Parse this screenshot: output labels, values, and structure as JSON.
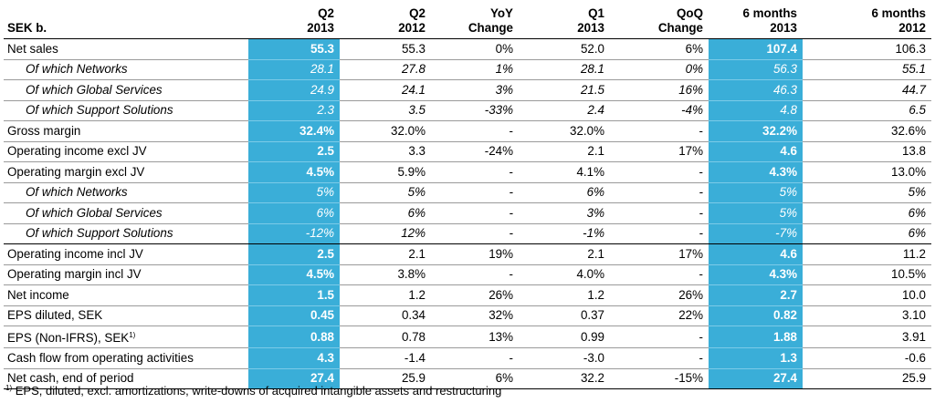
{
  "header": {
    "label": "SEK b.",
    "cols": [
      {
        "l1": "Q2",
        "l2": "2013"
      },
      {
        "l1": "Q2",
        "l2": "2012"
      },
      {
        "l1": "YoY",
        "l2": "Change"
      },
      {
        "l1": "Q1",
        "l2": "2013"
      },
      {
        "l1": "QoQ",
        "l2": "Change"
      },
      {
        "l1": "6 months",
        "l2": "2013"
      },
      {
        "l1": "6 months",
        "l2": "2012"
      }
    ]
  },
  "highlight_color": "#3aaed8",
  "rows": [
    {
      "label": "Net sales",
      "sup": "",
      "sub": false,
      "grp": false,
      "v": [
        "55.3",
        "55.3",
        "0%",
        "52.0",
        "6%",
        "107.4",
        "106.3"
      ]
    },
    {
      "label": "Of which Networks",
      "sup": "",
      "sub": true,
      "grp": false,
      "v": [
        "28.1",
        "27.8",
        "1%",
        "28.1",
        "0%",
        "56.3",
        "55.1"
      ]
    },
    {
      "label": "Of which Global Services",
      "sup": "",
      "sub": true,
      "grp": false,
      "v": [
        "24.9",
        "24.1",
        "3%",
        "21.5",
        "16%",
        "46.3",
        "44.7"
      ]
    },
    {
      "label": "Of which Support Solutions",
      "sup": "",
      "sub": true,
      "grp": false,
      "v": [
        "2.3",
        "3.5",
        "-33%",
        "2.4",
        "-4%",
        "4.8",
        "6.5"
      ]
    },
    {
      "label": "Gross margin",
      "sup": "",
      "sub": false,
      "grp": false,
      "v": [
        "32.4%",
        "32.0%",
        "-",
        "32.0%",
        "-",
        "32.2%",
        "32.6%"
      ]
    },
    {
      "label": "Operating income excl JV",
      "sup": "",
      "sub": false,
      "grp": false,
      "v": [
        "2.5",
        "3.3",
        "-24%",
        "2.1",
        "17%",
        "4.6",
        "13.8"
      ]
    },
    {
      "label": "Operating margin excl JV",
      "sup": "",
      "sub": false,
      "grp": false,
      "v": [
        "4.5%",
        "5.9%",
        "-",
        "4.1%",
        "-",
        "4.3%",
        "13.0%"
      ]
    },
    {
      "label": "Of which Networks",
      "sup": "",
      "sub": true,
      "grp": false,
      "v": [
        "5%",
        "5%",
        "-",
        "6%",
        "-",
        "5%",
        "5%"
      ]
    },
    {
      "label": "Of which Global Services",
      "sup": "",
      "sub": true,
      "grp": false,
      "v": [
        "6%",
        "6%",
        "-",
        "3%",
        "-",
        "5%",
        "6%"
      ]
    },
    {
      "label": "Of which Support Solutions",
      "sup": "",
      "sub": true,
      "grp": true,
      "v": [
        "-12%",
        "12%",
        "-",
        "-1%",
        "-",
        "-7%",
        "6%"
      ]
    },
    {
      "label": "Operating income incl JV",
      "sup": "",
      "sub": false,
      "grp": false,
      "v": [
        "2.5",
        "2.1",
        "19%",
        "2.1",
        "17%",
        "4.6",
        "11.2"
      ]
    },
    {
      "label": "Operating margin incl JV",
      "sup": "",
      "sub": false,
      "grp": false,
      "v": [
        "4.5%",
        "3.8%",
        "-",
        "4.0%",
        "-",
        "4.3%",
        "10.5%"
      ]
    },
    {
      "label": "Net income",
      "sup": "",
      "sub": false,
      "grp": false,
      "v": [
        "1.5",
        "1.2",
        "26%",
        "1.2",
        "26%",
        "2.7",
        "10.0"
      ]
    },
    {
      "label": "EPS diluted, SEK",
      "sup": "",
      "sub": false,
      "grp": false,
      "v": [
        "0.45",
        "0.34",
        "32%",
        "0.37",
        "22%",
        "0.82",
        "3.10"
      ]
    },
    {
      "label": "EPS (Non-IFRS), SEK",
      "sup": "1)",
      "sub": false,
      "grp": false,
      "v": [
        "0.88",
        "0.78",
        "13%",
        "0.99",
        "-",
        "1.88",
        "3.91"
      ]
    },
    {
      "label": "Cash flow from operating activities",
      "sup": "",
      "sub": false,
      "grp": false,
      "v": [
        "4.3",
        "-1.4",
        "-",
        "-3.0",
        "-",
        "1.3",
        "-0.6"
      ]
    },
    {
      "label": "Net cash, end of period",
      "sup": "",
      "sub": false,
      "grp": false,
      "v": [
        "27.4",
        "25.9",
        "6%",
        "32.2",
        "-15%",
        "27.4",
        "25.9"
      ]
    }
  ],
  "footnote": {
    "mark": "1)",
    "text": "EPS, diluted, excl. amortizations, write-downs of acquired intangible assets and restructuring"
  }
}
